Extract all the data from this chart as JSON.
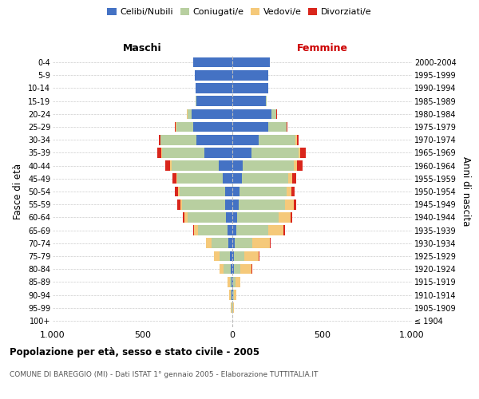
{
  "age_groups": [
    "100+",
    "95-99",
    "90-94",
    "85-89",
    "80-84",
    "75-79",
    "70-74",
    "65-69",
    "60-64",
    "55-59",
    "50-54",
    "45-49",
    "40-44",
    "35-39",
    "30-34",
    "25-29",
    "20-24",
    "15-19",
    "10-14",
    "5-9",
    "0-4"
  ],
  "birth_years": [
    "≤ 1904",
    "1905-1909",
    "1910-1914",
    "1915-1919",
    "1920-1924",
    "1925-1929",
    "1930-1934",
    "1935-1939",
    "1940-1944",
    "1945-1949",
    "1950-1954",
    "1955-1959",
    "1960-1964",
    "1965-1969",
    "1970-1974",
    "1975-1979",
    "1980-1984",
    "1985-1989",
    "1990-1994",
    "1995-1999",
    "2000-2004"
  ],
  "maschi_celibi": [
    1,
    2,
    3,
    4,
    10,
    15,
    22,
    28,
    35,
    38,
    42,
    55,
    75,
    155,
    200,
    220,
    225,
    200,
    205,
    208,
    218
  ],
  "maschi_coniugati": [
    0,
    3,
    8,
    10,
    38,
    58,
    95,
    165,
    215,
    242,
    252,
    252,
    265,
    235,
    198,
    92,
    25,
    5,
    0,
    0,
    0
  ],
  "maschi_vedovi": [
    0,
    2,
    5,
    12,
    22,
    28,
    28,
    22,
    15,
    10,
    8,
    5,
    5,
    5,
    3,
    2,
    2,
    0,
    0,
    0,
    0
  ],
  "maschi_divorziati": [
    0,
    0,
    0,
    0,
    0,
    0,
    2,
    5,
    12,
    15,
    18,
    22,
    28,
    22,
    10,
    5,
    2,
    0,
    0,
    0,
    0
  ],
  "femmine_nubili": [
    1,
    2,
    3,
    5,
    8,
    10,
    15,
    20,
    28,
    35,
    40,
    55,
    58,
    105,
    145,
    198,
    218,
    188,
    198,
    198,
    208
  ],
  "femmine_coniugate": [
    0,
    3,
    8,
    12,
    35,
    55,
    98,
    178,
    228,
    258,
    262,
    258,
    282,
    262,
    208,
    102,
    25,
    5,
    0,
    0,
    0
  ],
  "femmine_vedove": [
    0,
    5,
    12,
    28,
    65,
    82,
    95,
    88,
    68,
    48,
    28,
    22,
    18,
    12,
    5,
    3,
    2,
    0,
    0,
    0,
    0
  ],
  "femmine_divorziate": [
    0,
    0,
    0,
    0,
    2,
    5,
    5,
    8,
    10,
    15,
    18,
    22,
    32,
    28,
    10,
    5,
    2,
    0,
    0,
    0,
    0
  ],
  "color_celibi": "#4472c4",
  "color_coniugati": "#b8cfa0",
  "color_vedovi": "#f5c97a",
  "color_divorziati": "#d9261c",
  "xlim": 1000,
  "title": "Popolazione per età, sesso e stato civile - 2005",
  "subtitle": "COMUNE DI BAREGGIO (MI) - Dati ISTAT 1° gennaio 2005 - Elaborazione TUTTITALIA.IT",
  "ylabel_left": "Fasce di età",
  "ylabel_right": "Anni di nascita",
  "label_maschi": "Maschi",
  "label_femmine": "Femmine",
  "legend_celibi": "Celibi/Nubili",
  "legend_coniugati": "Coniugati/e",
  "legend_vedovi": "Vedovi/e",
  "legend_divorziati": "Divorziati/e",
  "xtick_labels": [
    "1.000",
    "500",
    "0",
    "500",
    "1.000"
  ],
  "xtick_vals": [
    -1000,
    -500,
    0,
    500,
    1000
  ]
}
